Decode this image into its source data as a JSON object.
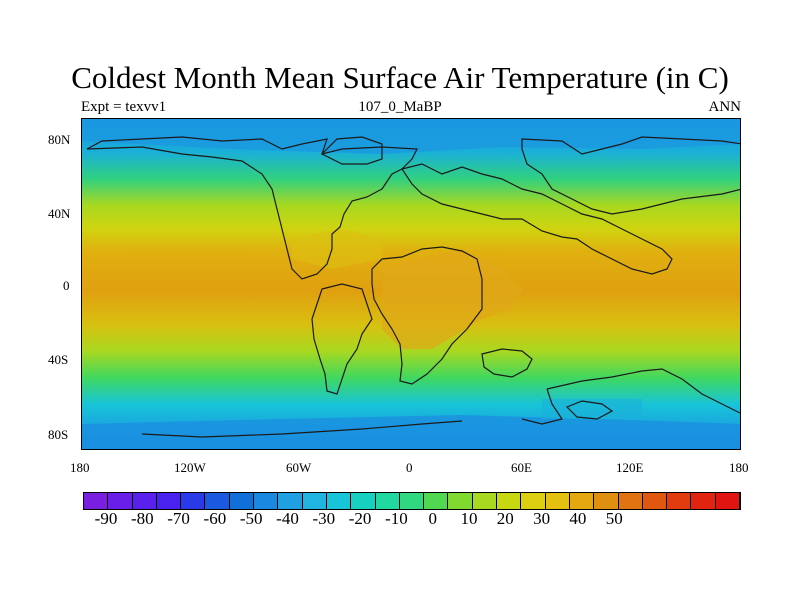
{
  "title": "Coldest Month Mean Surface Air Temperature (in C)",
  "subtitle_left": "Expt = texvv1",
  "subtitle_center": "107_0_MaBP",
  "subtitle_right": "ANN",
  "x_ticks": [
    "180",
    "120W",
    "60W",
    "0",
    "60E",
    "120E",
    "180"
  ],
  "y_ticks": [
    "80N",
    "40N",
    "0",
    "40S",
    "80S"
  ],
  "colorbar_labels": [
    "-90",
    "-80",
    "-70",
    "-60",
    "-50",
    "-40",
    "-30",
    "-20",
    "-10",
    "0",
    "10",
    "20",
    "30",
    "40",
    "50"
  ],
  "colorbar_colors": [
    "#7a1fe0",
    "#6a1fe8",
    "#5a20ec",
    "#4a22f0",
    "#2a3ae8",
    "#1a5ae0",
    "#1070d8",
    "#1a88e0",
    "#20a0e0",
    "#20b4e0",
    "#18c4d8",
    "#18d0c0",
    "#20d8a0",
    "#30d880",
    "#50d850",
    "#80d830",
    "#a8d820",
    "#c8d810",
    "#dcd010",
    "#e4c010",
    "#e4a810",
    "#e09010",
    "#e07410",
    "#e05810",
    "#e03c10",
    "#e02410",
    "#e01410"
  ],
  "chart_data": {
    "type": "heatmap",
    "title": "Coldest Month Mean Surface Air Temperature (in C)",
    "variable": "Coldest Month Mean Surface Air Temperature",
    "units": "C",
    "experiment": "texvv1",
    "period": "107_0_MaBP",
    "season": "ANN",
    "xlim": [
      -180,
      180
    ],
    "ylim": [
      -90,
      90
    ],
    "x_ticks": [
      "180",
      "120W",
      "60W",
      "0",
      "60E",
      "120E",
      "180"
    ],
    "y_ticks": [
      "80N",
      "40N",
      "0",
      "40S",
      "80S"
    ],
    "colorbar_levels": [
      -90,
      -80,
      -70,
      -60,
      -50,
      -40,
      -30,
      -20,
      -10,
      0,
      10,
      20,
      30,
      40,
      50
    ],
    "zonal_profile_approx": [
      {
        "lat": 90,
        "value": -28
      },
      {
        "lat": 70,
        "value": -20
      },
      {
        "lat": 55,
        "value": -5
      },
      {
        "lat": 40,
        "value": 10
      },
      {
        "lat": 20,
        "value": 22
      },
      {
        "lat": 0,
        "value": 27
      },
      {
        "lat": -20,
        "value": 22
      },
      {
        "lat": -40,
        "value": 10
      },
      {
        "lat": -55,
        "value": -2
      },
      {
        "lat": -70,
        "value": -18
      },
      {
        "lat": -90,
        "value": -28
      }
    ]
  }
}
